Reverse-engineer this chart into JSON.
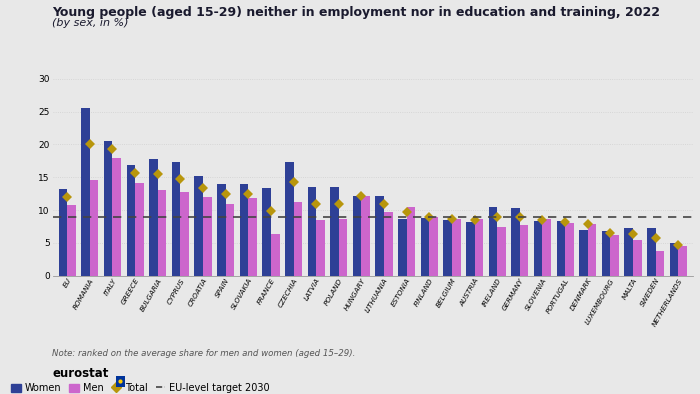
{
  "title": "Young people (aged 15-29) neither in employment nor in education and training, 2022",
  "subtitle": "(by sex, in %)",
  "note": "Note: ranked on the average share for men and women (aged 15–29).",
  "categories": [
    "EU",
    "ROMANIA",
    "ITALY",
    "GREECE",
    "BULGARIA",
    "CYPRUS",
    "CROATIA",
    "SPAIN",
    "SLOVAKIA",
    "FRANCE",
    "CZECHIA",
    "LATVIA",
    "POLAND",
    "HUNGARY",
    "LITHUANIA",
    "ESTONIA",
    "FINLAND",
    "BELGIUM",
    "AUSTRIA",
    "IRELAND",
    "GERMANY",
    "SLOVENIA",
    "PORTUGAL",
    "DENMARK",
    "LUXEMBOURG",
    "MALTA",
    "SWEDEN",
    "NETHERLANDS"
  ],
  "women": [
    13.2,
    25.5,
    20.6,
    16.8,
    17.8,
    17.3,
    15.2,
    14.0,
    14.0,
    13.3,
    17.3,
    13.5,
    13.5,
    12.1,
    12.1,
    8.7,
    8.8,
    8.5,
    8.2,
    10.5,
    10.3,
    8.4,
    8.3,
    7.0,
    6.8,
    7.3,
    7.3,
    5.0
  ],
  "men": [
    10.8,
    14.6,
    18.0,
    14.2,
    13.0,
    12.7,
    12.0,
    11.0,
    11.9,
    6.3,
    11.3,
    8.5,
    8.6,
    12.2,
    9.7,
    10.5,
    9.0,
    8.7,
    8.7,
    7.5,
    7.8,
    8.6,
    8.1,
    7.9,
    6.2,
    5.5,
    3.8,
    4.6
  ],
  "total": [
    12.0,
    20.0,
    19.3,
    15.7,
    15.5,
    14.8,
    13.3,
    12.4,
    12.4,
    9.8,
    14.3,
    11.0,
    11.0,
    12.2,
    10.9,
    9.7,
    9.0,
    8.6,
    8.5,
    9.0,
    9.0,
    8.5,
    8.2,
    7.9,
    6.5,
    6.4,
    5.7,
    4.7
  ],
  "eu_target": 9.0,
  "color_women": "#2e4096",
  "color_men": "#cc66cc",
  "color_total": "#b8960c",
  "color_target": "#444444",
  "bg_color": "#e8e8e8",
  "plot_bg_color": "#e8e8e8",
  "grid_color": "#d0d0d0",
  "ylim": [
    0,
    30
  ],
  "yticks": [
    0,
    5,
    10,
    15,
    20,
    25,
    30
  ]
}
